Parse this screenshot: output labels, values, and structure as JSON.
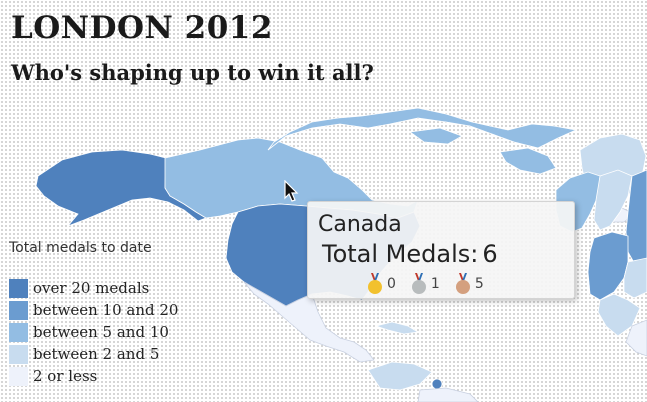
{
  "header": {
    "title": "LONDON 2012",
    "subtitle": "Who's shaping up to win it all?"
  },
  "legend": {
    "title": "Total medals to date",
    "items": [
      {
        "label": "over 20 medals",
        "color": "#4f81bd"
      },
      {
        "label": "between 10 and 20",
        "color": "#6b9cd0"
      },
      {
        "label": "between 5 and 10",
        "color": "#93bde3"
      },
      {
        "label": "between 2 and 5",
        "color": "#c8dcef"
      },
      {
        "label": "2 or less",
        "color": "#eef2fb"
      }
    ]
  },
  "tooltip": {
    "country": "Canada",
    "total_label": "Total Medals:",
    "total_value": "6",
    "medals": [
      {
        "type": "gold",
        "count": "0",
        "color": "#f2c12e"
      },
      {
        "type": "silver",
        "count": "1",
        "color": "#b8bcbd"
      },
      {
        "type": "bronze",
        "count": "5",
        "color": "#d4a07f"
      }
    ]
  },
  "map": {
    "border_color": "#ffffff",
    "colors": {
      "usa": "#4f81bd",
      "canada": "#93bde3",
      "greenland": "#c8dcef",
      "europe_dark": "#6b9cd0",
      "europe_light": "#93bde3",
      "minor": "#eef2fb"
    }
  }
}
